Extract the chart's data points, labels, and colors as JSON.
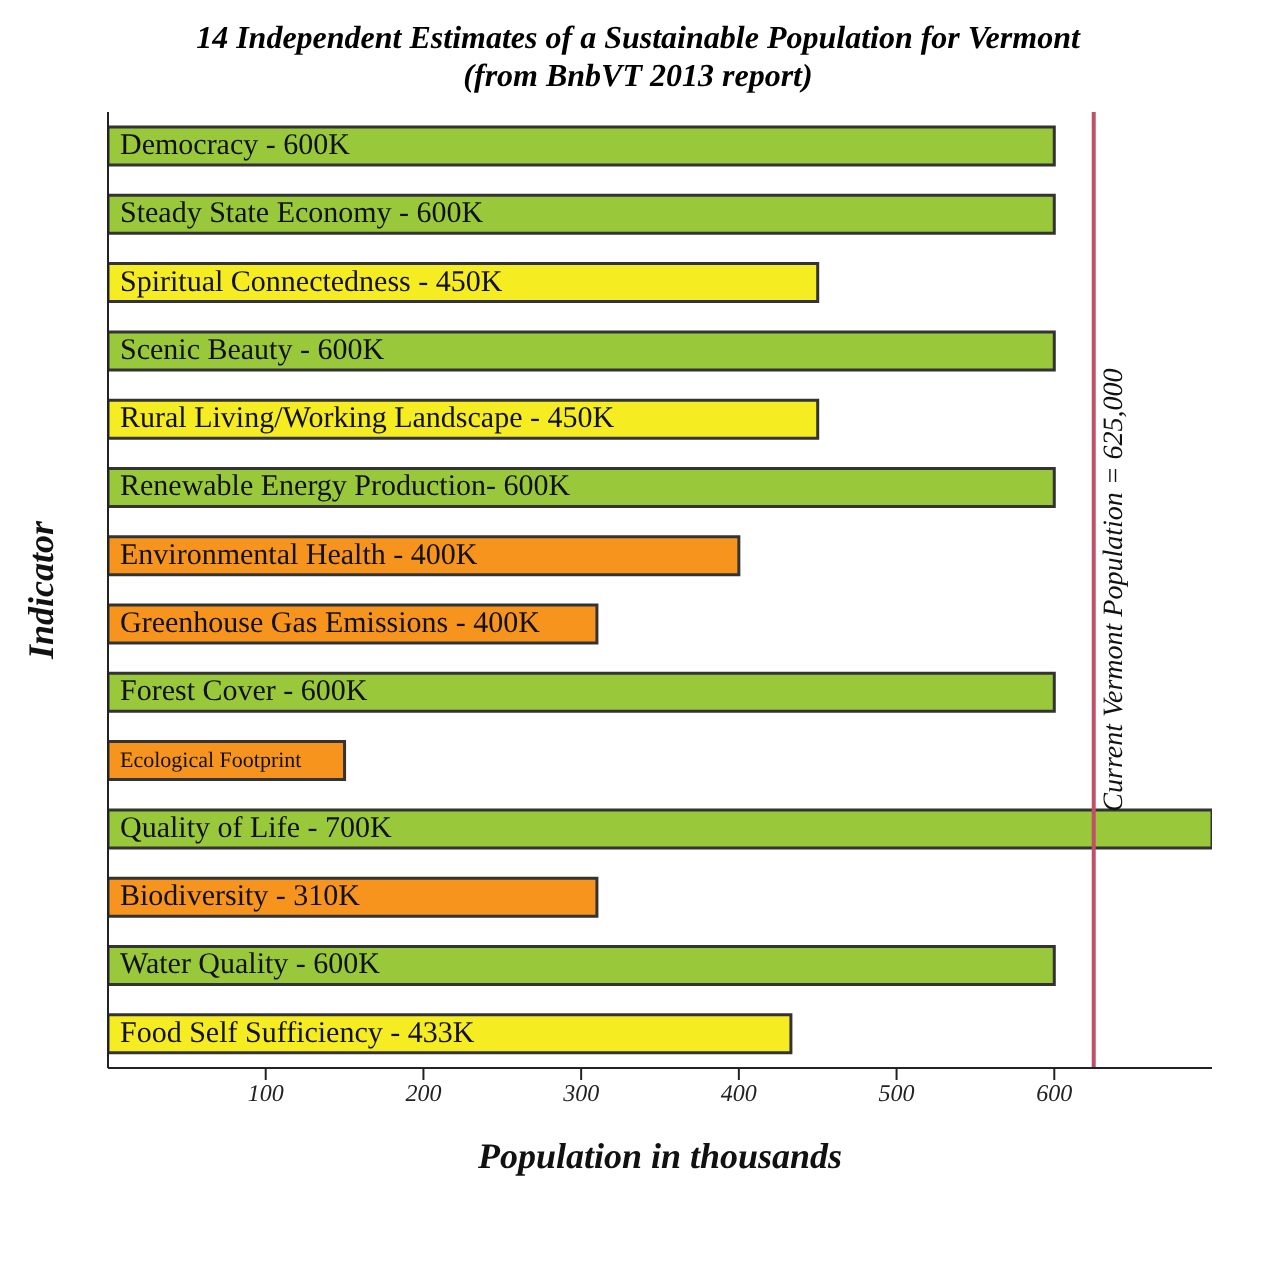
{
  "chart_data": {
    "type": "bar",
    "orientation": "horizontal",
    "title": "14 Independent Estimates of a Sustainable Population for Vermont",
    "subtitle": "(from BnbVT 2013 report)",
    "xlabel": "Population in thousands",
    "ylabel": "Indicator",
    "categories": [
      "Democracy - 600K",
      "Steady State  Economy - 600K",
      "Spiritual Connectedness - 450K",
      "Scenic Beauty - 600K",
      "Rural Living/Working Landscape - 450K",
      "Renewable Energy Production- 600K",
      "Environmental Health - 400K",
      "Greenhouse Gas Emissions - 400K",
      "Forest Cover - 600K",
      "Ecological Footprint",
      "Quality of Life - 700K",
      "Biodiversity - 310K",
      "Water Quality - 600K",
      "Food Self Sufficiency - 433K"
    ],
    "values": [
      600,
      600,
      450,
      600,
      450,
      600,
      400,
      310,
      600,
      150,
      700,
      310,
      600,
      433
    ],
    "colors": [
      "#99c93b",
      "#99c93b",
      "#f6ec22",
      "#99c93b",
      "#f6ec22",
      "#99c93b",
      "#f7941e",
      "#f7941e",
      "#99c93b",
      "#f7941e",
      "#99c93b",
      "#f7941e",
      "#99c93b",
      "#f6ec22"
    ],
    "xlim": [
      0,
      700
    ],
    "xticks": [
      100,
      200,
      300,
      400,
      500,
      600
    ],
    "tick_labels": "x",
    "ref_lines": [
      {
        "axis": "x",
        "value": 625,
        "label": "Current Vermont Population = 625,000",
        "color": "#c0506a"
      }
    ]
  }
}
